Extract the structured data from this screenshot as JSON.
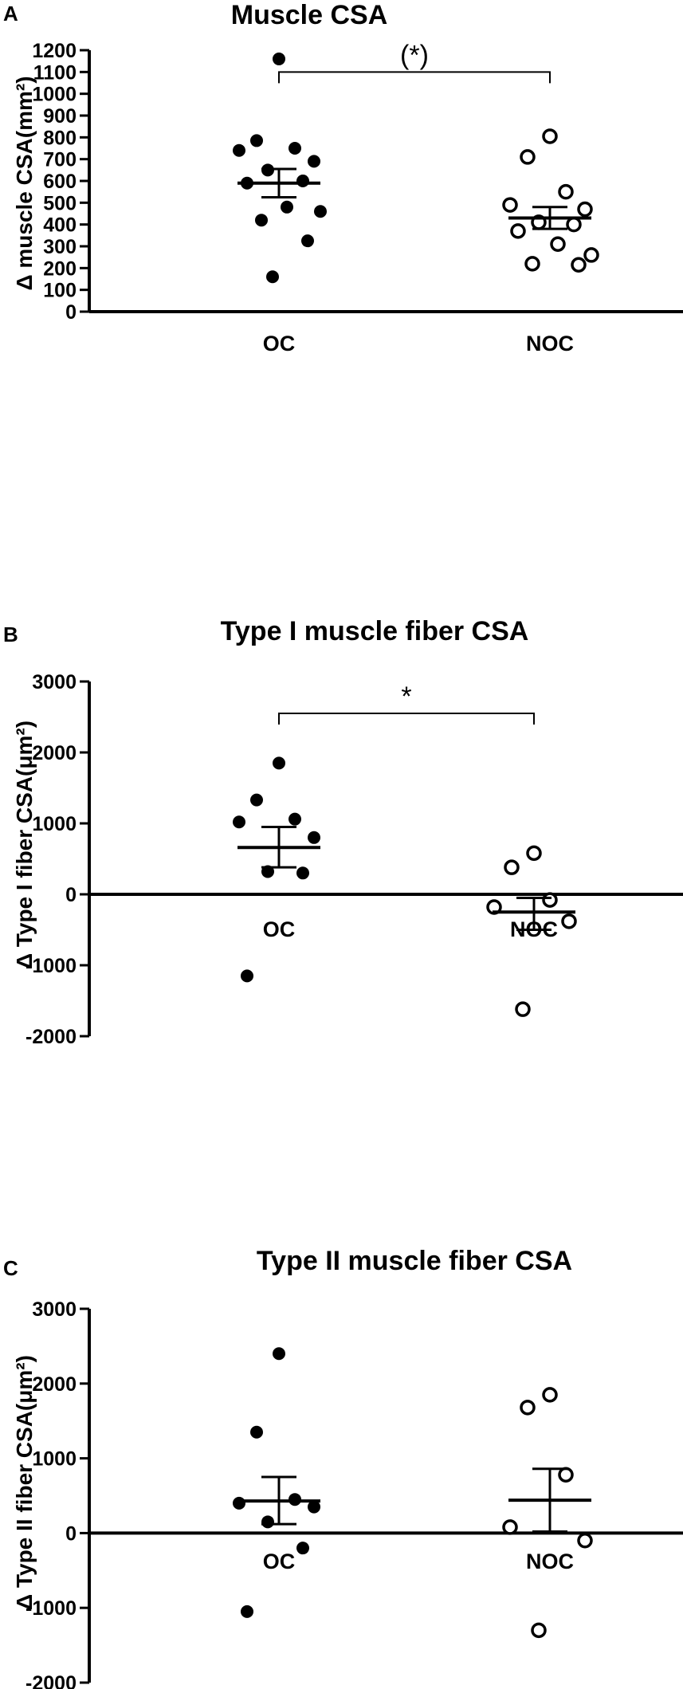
{
  "chart_data": [
    {
      "panel": "A",
      "type": "scatter",
      "title": "Muscle CSA",
      "ylabel": "Δ muscle CSA(mm²)",
      "categories": [
        "OC",
        "NOC"
      ],
      "ylim": [
        0,
        1200
      ],
      "yticks": [
        0,
        100,
        200,
        300,
        400,
        500,
        600,
        700,
        800,
        900,
        1000,
        1100,
        1200
      ],
      "zero_line": false,
      "groups": [
        {
          "category": "OC",
          "marker": "filled",
          "mean": 590,
          "sem_low": 525,
          "sem_high": 655,
          "points": [
            1160,
            785,
            750,
            740,
            690,
            650,
            600,
            590,
            480,
            460,
            420,
            325,
            160
          ]
        },
        {
          "category": "NOC",
          "marker": "open",
          "mean": 430,
          "sem_low": 380,
          "sem_high": 480,
          "points": [
            805,
            710,
            550,
            490,
            470,
            410,
            400,
            370,
            310,
            260,
            220,
            215
          ]
        }
      ],
      "significance": {
        "label": "(*)",
        "from": "OC",
        "to": "NOC",
        "y": 1100
      }
    },
    {
      "panel": "B",
      "type": "scatter",
      "title": "Type I muscle fiber CSA",
      "ylabel": "Δ Type I fiber CSA(μm²)",
      "categories": [
        "OC",
        "NOC"
      ],
      "ylim": [
        -2000,
        3000
      ],
      "yticks": [
        -2000,
        -1000,
        0,
        1000,
        2000,
        3000
      ],
      "zero_line": true,
      "groups": [
        {
          "category": "OC",
          "marker": "filled",
          "mean": 660,
          "sem_low": 380,
          "sem_high": 950,
          "points": [
            1850,
            1330,
            1060,
            1020,
            800,
            320,
            300,
            -1150
          ]
        },
        {
          "category": "NOC",
          "marker": "open",
          "mean": -250,
          "sem_low": -500,
          "sem_high": -50,
          "points": [
            580,
            380,
            -80,
            -180,
            -380,
            -1620
          ]
        }
      ],
      "significance": {
        "label": "*",
        "from": "OC",
        "to": "NOC",
        "y": 2550
      }
    },
    {
      "panel": "C",
      "type": "scatter",
      "title": "Type II muscle fiber CSA",
      "ylabel": "Δ Type II fiber CSA(μm²)",
      "categories": [
        "OC",
        "NOC"
      ],
      "ylim": [
        -2000,
        3000
      ],
      "yticks": [
        -2000,
        -1000,
        0,
        1000,
        2000,
        3000
      ],
      "zero_line": true,
      "groups": [
        {
          "category": "OC",
          "marker": "filled",
          "mean": 430,
          "sem_low": 120,
          "sem_high": 750,
          "points": [
            2400,
            1350,
            450,
            400,
            350,
            150,
            -200,
            -1050
          ]
        },
        {
          "category": "NOC",
          "marker": "open",
          "mean": 440,
          "sem_low": 20,
          "sem_high": 860,
          "points": [
            1850,
            1680,
            780,
            80,
            -100,
            -1300
          ]
        }
      ],
      "significance": null
    }
  ]
}
